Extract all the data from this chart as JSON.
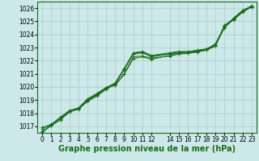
{
  "title": "Graphe pression niveau de la mer (hPa)",
  "background_color": "#cce8e8",
  "grid_color": "#aacccc",
  "line_color": "#1a6b1a",
  "ylim": [
    1016.5,
    1026.5
  ],
  "xlim": [
    -0.5,
    23.5
  ],
  "yticks": [
    1017,
    1018,
    1019,
    1020,
    1021,
    1022,
    1023,
    1024,
    1025,
    1026
  ],
  "xticks": [
    0,
    1,
    2,
    3,
    4,
    5,
    6,
    7,
    8,
    9,
    10,
    11,
    12,
    14,
    15,
    16,
    17,
    18,
    19,
    20,
    21,
    22,
    23
  ],
  "series": [
    {
      "x": [
        0,
        1,
        2,
        3,
        4,
        5,
        6,
        7,
        8,
        9,
        10,
        11,
        12,
        14,
        15,
        16,
        17,
        18,
        19,
        20,
        21,
        22,
        23
      ],
      "y": [
        1016.55,
        1017.05,
        1017.55,
        1018.15,
        1018.4,
        1019.05,
        1019.45,
        1019.95,
        1020.3,
        1021.4,
        1022.6,
        1022.7,
        1022.4,
        1022.6,
        1022.7,
        1022.7,
        1022.8,
        1022.9,
        1023.2,
        1024.7,
        1025.2,
        1025.8,
        1026.2
      ]
    },
    {
      "x": [
        0,
        1,
        2,
        3,
        4,
        5,
        6,
        7,
        8,
        9,
        10,
        11,
        12,
        14,
        15,
        16,
        17,
        18,
        19,
        20,
        21,
        22,
        23
      ],
      "y": [
        1016.6,
        1017.05,
        1017.5,
        1018.1,
        1018.35,
        1018.95,
        1019.35,
        1019.85,
        1020.25,
        1021.35,
        1022.55,
        1022.65,
        1022.35,
        1022.55,
        1022.65,
        1022.65,
        1022.75,
        1022.85,
        1023.15,
        1024.65,
        1025.15,
        1025.75,
        1026.15
      ]
    },
    {
      "x": [
        0,
        1,
        2,
        3,
        4,
        5,
        6,
        7,
        8,
        9,
        10,
        11,
        12,
        14,
        15,
        16,
        17,
        18,
        19,
        20,
        21,
        22,
        23
      ],
      "y": [
        1016.8,
        1017.1,
        1017.65,
        1018.15,
        1018.35,
        1019.0,
        1019.4,
        1019.9,
        1020.15,
        1021.0,
        1022.3,
        1022.35,
        1022.2,
        1022.35,
        1022.5,
        1022.55,
        1022.65,
        1022.8,
        1023.2,
        1024.5,
        1025.2,
        1025.8,
        1026.1
      ]
    },
    {
      "x": [
        0,
        1,
        2,
        3,
        4,
        5,
        6,
        7,
        8,
        9,
        10,
        11,
        12,
        14,
        15,
        16,
        17,
        18,
        19,
        20,
        21,
        22,
        23
      ],
      "y": [
        1016.9,
        1017.15,
        1017.7,
        1018.2,
        1018.4,
        1019.1,
        1019.5,
        1019.95,
        1020.1,
        1020.95,
        1022.15,
        1022.3,
        1022.1,
        1022.4,
        1022.55,
        1022.6,
        1022.7,
        1022.85,
        1023.3,
        1024.55,
        1025.25,
        1025.85,
        1026.15
      ]
    },
    {
      "x": [
        0,
        1,
        2,
        3,
        4,
        5,
        6,
        7,
        8,
        9,
        10,
        11,
        12,
        14,
        15,
        16,
        17,
        18,
        19,
        20,
        21,
        22,
        23
      ],
      "y": [
        1016.6,
        1017.05,
        1017.5,
        1018.1,
        1018.3,
        1018.9,
        1019.3,
        1019.8,
        1020.2,
        1021.3,
        1022.5,
        1022.6,
        1022.3,
        1022.5,
        1022.6,
        1022.6,
        1022.7,
        1022.8,
        1023.1,
        1024.6,
        1025.1,
        1025.7,
        1026.1
      ]
    }
  ],
  "marker": "+",
  "markersize": 3,
  "linewidth": 0.7,
  "title_fontsize": 7,
  "tick_fontsize": 5.5
}
